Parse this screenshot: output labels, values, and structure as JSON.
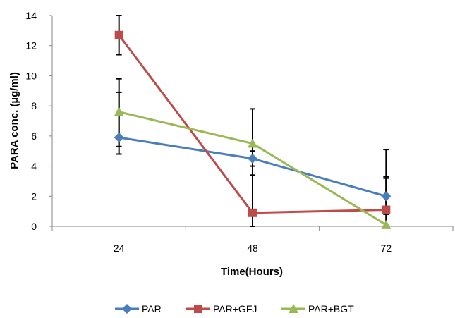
{
  "chart_data": {
    "type": "line",
    "xlabel": "Time(Hours)",
    "ylabel": "PARA conc. (µg/ml)",
    "categories": [
      "24",
      "48",
      "72"
    ],
    "ylim": [
      0,
      14
    ],
    "yticks": [
      0,
      2,
      4,
      6,
      8,
      10,
      12,
      14
    ],
    "grid": false,
    "legend_position": "bottom",
    "series": [
      {
        "name": "PAR",
        "values": [
          5.9,
          4.5,
          2.0
        ],
        "err_upper": [
          9.8,
          5.0,
          3.2
        ],
        "err_lower": [
          4.8,
          3.4,
          0.8
        ],
        "color": "#4A7EBB",
        "marker": "diamond"
      },
      {
        "name": "PAR+GFJ",
        "values": [
          12.7,
          0.9,
          1.1
        ],
        "err_upper": [
          14.0,
          4.0,
          5.1
        ],
        "err_lower": [
          11.4,
          0.0,
          0.0
        ],
        "color": "#BE4B48",
        "marker": "square"
      },
      {
        "name": "PAR+BGT",
        "values": [
          7.6,
          5.5,
          0.1
        ],
        "err_upper": [
          8.9,
          7.8,
          3.3
        ],
        "err_lower": [
          5.3,
          3.4,
          0.0
        ],
        "color": "#98B954",
        "marker": "triangle"
      }
    ]
  }
}
